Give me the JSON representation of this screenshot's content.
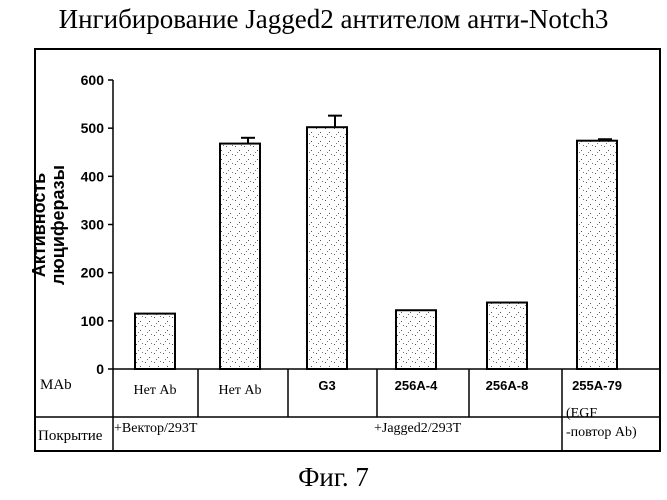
{
  "chart_data": {
    "type": "bar",
    "title": "Ингибирование Jagged2 антителом анти-Notch3",
    "ylabel_line1": "Активность",
    "ylabel_line2": "люциферазы",
    "ylim": [
      0,
      600
    ],
    "yticks": [
      "0",
      "100",
      "200",
      "300",
      "400",
      "500",
      "600"
    ],
    "categories": [
      "Нет Ab",
      "Нет Ab",
      "G3",
      "256A-4",
      "256A-8",
      "255A-79"
    ],
    "values": [
      115,
      468,
      502,
      122,
      138,
      474
    ],
    "errors": [
      0,
      12,
      24,
      0,
      0,
      3
    ],
    "row_mab_label": "MAb",
    "row_coating_label": "Покрытие",
    "coating_vector": "+Вектор/293T",
    "coating_jagged": "+Jagged2/293T",
    "last_note_line1": "(EGF",
    "last_note_line2": "-повтор Ab)",
    "caption": "Фиг. 7"
  }
}
